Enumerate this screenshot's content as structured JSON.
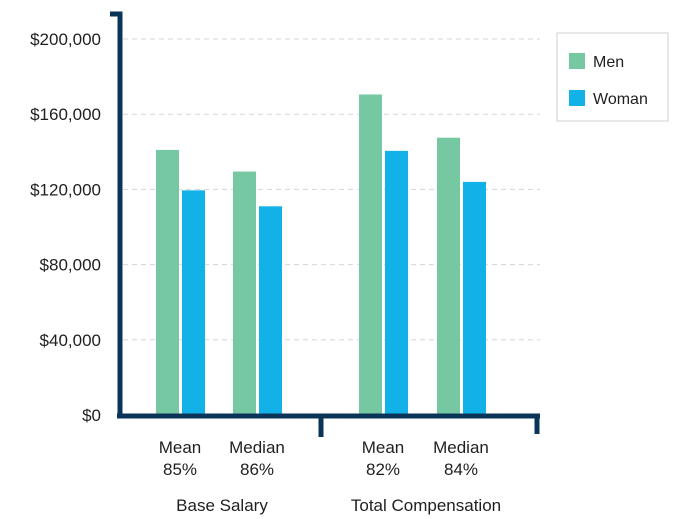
{
  "chart_data": {
    "type": "bar",
    "ylim": [
      0,
      200000
    ],
    "yticks": [
      {
        "value": 0,
        "label": "$0"
      },
      {
        "value": 40000,
        "label": "$40,000"
      },
      {
        "value": 80000,
        "label": "$80,000"
      },
      {
        "value": 120000,
        "label": "$120,000"
      },
      {
        "value": 160000,
        "label": "$160,000"
      },
      {
        "value": 200000,
        "label": "$200,000"
      }
    ],
    "grid": true,
    "legend_position": "top-right",
    "groups": [
      {
        "label": "Base Salary",
        "categories": [
          {
            "name": "Mean",
            "ratio": "85%"
          },
          {
            "name": "Median",
            "ratio": "86%"
          }
        ]
      },
      {
        "label": "Total Compensation",
        "categories": [
          {
            "name": "Mean",
            "ratio": "82%"
          },
          {
            "name": "Median",
            "ratio": "84%"
          }
        ]
      }
    ],
    "series": [
      {
        "name": "Men",
        "color": "#76c8a3",
        "values": [
          141000,
          129500,
          170500,
          147500
        ]
      },
      {
        "name": "Woman",
        "color": "#12b2e8",
        "values": [
          119500,
          111000,
          140500,
          124000
        ]
      }
    ],
    "colors": {
      "axis": "#0b3558",
      "grid": "#d6d6d6",
      "legend_border": "#cfcfcf"
    }
  }
}
